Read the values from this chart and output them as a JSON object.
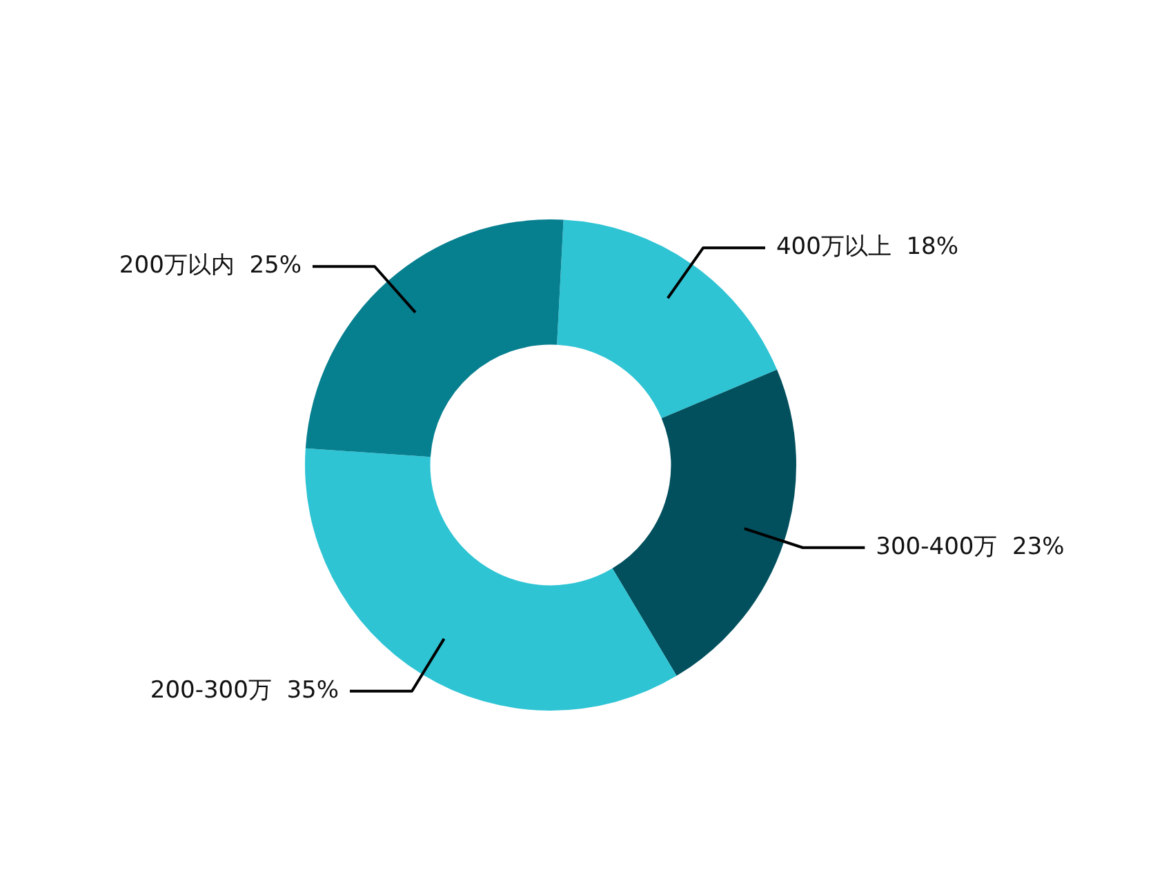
{
  "chart_data": {
    "type": "donut",
    "categories": [
      "400万以上",
      "300-400万",
      "200-300万",
      "200万以内"
    ],
    "values": [
      18,
      23,
      35,
      25
    ],
    "value_labels": [
      "18%",
      "23%",
      "35%",
      "25%"
    ],
    "colors": [
      "#2ec4d4",
      "#02505e",
      "#2ec4d4",
      "#067f8f"
    ],
    "legend": false
  }
}
